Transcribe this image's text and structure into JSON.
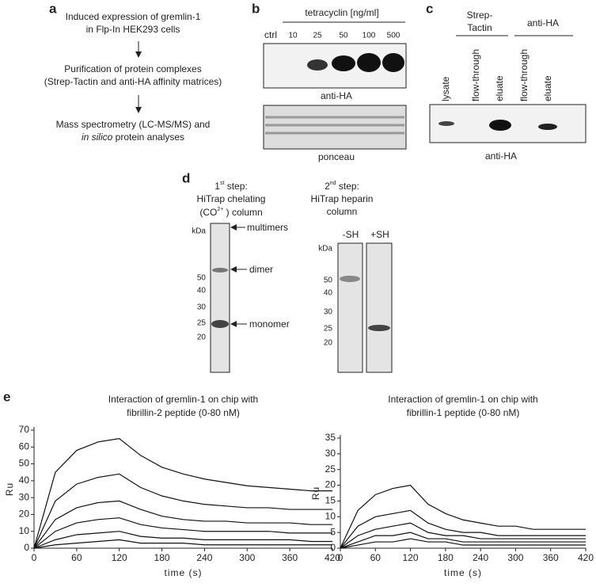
{
  "figure": {
    "a": {
      "label": "a",
      "lines": [
        "Induced expression of gremlin-1",
        "in Flp-In HEK293 cells",
        "Purification of protein complexes",
        "(Strep-Tactin and anti-HA affinity matrices)",
        "Mass spectrometry (LC-MS/MS) and"
      ],
      "italic": "in silico",
      "last": " protein analyses"
    },
    "b": {
      "label": "b",
      "header": "tetracyclin [ng/ml]",
      "lanes": [
        "ctrl",
        "10",
        "25",
        "50",
        "100",
        "500"
      ],
      "blots": [
        "anti-HA",
        "ponceau"
      ]
    },
    "c": {
      "label": "c",
      "group1": [
        "Strep-",
        "Tactin"
      ],
      "group2": "anti-HA",
      "lanes": [
        "lysate",
        "flow-through",
        "eluate",
        "flow-through",
        "eluate"
      ],
      "blot": "anti-HA"
    },
    "d": {
      "label": "d",
      "step1": {
        "num": "1",
        "sup": "st",
        "rest": " step:",
        "line2": "HiTrap chelating",
        "line3a": "(CO",
        "line3sup": "2+",
        "line3b": " ) column",
        "kda": "kDa",
        "markers": [
          "50",
          "40",
          "30",
          "25",
          "20"
        ],
        "arrows": [
          "multimers",
          "dimer",
          "monomer"
        ]
      },
      "step2": {
        "num": "2",
        "sup": "nd",
        "rest": " step:",
        "line2": "HiTrap heparin",
        "line3": "column",
        "kda": "kDa",
        "markers": [
          "50",
          "40",
          "30",
          "25",
          "20"
        ],
        "lanes": [
          "-SH",
          "+SH"
        ]
      }
    },
    "e": {
      "label": "e"
    }
  },
  "chart_data": [
    {
      "type": "line",
      "title": [
        "Interaction of gremlin-1 on chip with",
        "fibrillin-2 peptide (0-80 nM)"
      ],
      "x_label": "time (s)",
      "y_label": "Ru",
      "x": [
        0,
        30,
        60,
        90,
        120,
        150,
        180,
        210,
        240,
        270,
        300,
        330,
        360,
        390,
        420
      ],
      "xlim": [
        0,
        420
      ],
      "xticks": [
        0,
        60,
        120,
        180,
        240,
        300,
        360,
        420
      ],
      "ylim": [
        0,
        70
      ],
      "yticks": [
        0,
        10,
        20,
        30,
        40,
        50,
        60,
        70
      ],
      "series": [
        {
          "color": "#111",
          "values": [
            0,
            45,
            58,
            63,
            65,
            55,
            48,
            44,
            41,
            39,
            37,
            36,
            35,
            34,
            34
          ]
        },
        {
          "color": "#111",
          "values": [
            0,
            28,
            38,
            42,
            44,
            36,
            31,
            28,
            26,
            25,
            24,
            24,
            23,
            23,
            23
          ]
        },
        {
          "color": "#111",
          "values": [
            0,
            17,
            24,
            27,
            28,
            23,
            19,
            17,
            16,
            16,
            15,
            15,
            15,
            14,
            14
          ]
        },
        {
          "color": "#111",
          "values": [
            0,
            10,
            15,
            17,
            18,
            14,
            12,
            11,
            10,
            10,
            10,
            10,
            9,
            9,
            9
          ]
        },
        {
          "color": "#111",
          "values": [
            0,
            5,
            8,
            9,
            10,
            7,
            6,
            6,
            5,
            5,
            5,
            5,
            5,
            4,
            4
          ]
        },
        {
          "color": "#111",
          "values": [
            0,
            2,
            3,
            4,
            5,
            3,
            3,
            3,
            2,
            2,
            2,
            2,
            2,
            2,
            2
          ]
        }
      ]
    },
    {
      "type": "line",
      "title": [
        "Interaction of gremlin-1 on chip with",
        "fibrillin-1 peptide (0-80 nM)"
      ],
      "x_label": "time (s)",
      "y_label": "Ru",
      "x": [
        0,
        30,
        60,
        90,
        120,
        150,
        180,
        210,
        240,
        270,
        300,
        330,
        360,
        390,
        420
      ],
      "xlim": [
        0,
        420
      ],
      "xticks": [
        0,
        60,
        120,
        180,
        240,
        300,
        360,
        420
      ],
      "ylim": [
        0,
        35
      ],
      "yticks": [
        0,
        5,
        10,
        15,
        20,
        25,
        30,
        35
      ],
      "series": [
        {
          "color": "#111",
          "values": [
            0,
            12,
            17,
            19,
            20,
            14,
            11,
            9,
            8,
            7,
            7,
            6,
            6,
            6,
            6
          ]
        },
        {
          "color": "#111",
          "values": [
            0,
            7,
            10,
            11,
            12,
            8,
            6,
            5,
            5,
            4,
            4,
            4,
            4,
            4,
            4
          ]
        },
        {
          "color": "#111",
          "values": [
            0,
            4,
            6,
            7,
            8,
            5,
            4,
            4,
            3,
            3,
            3,
            3,
            3,
            3,
            3
          ]
        },
        {
          "color": "#111",
          "values": [
            0,
            2,
            4,
            4,
            5,
            3,
            3,
            2,
            2,
            2,
            2,
            2,
            2,
            2,
            2
          ]
        },
        {
          "color": "#111",
          "values": [
            0,
            1,
            2,
            2,
            3,
            2,
            2,
            1,
            1,
            1,
            1,
            1,
            1,
            1,
            1
          ]
        }
      ]
    }
  ]
}
